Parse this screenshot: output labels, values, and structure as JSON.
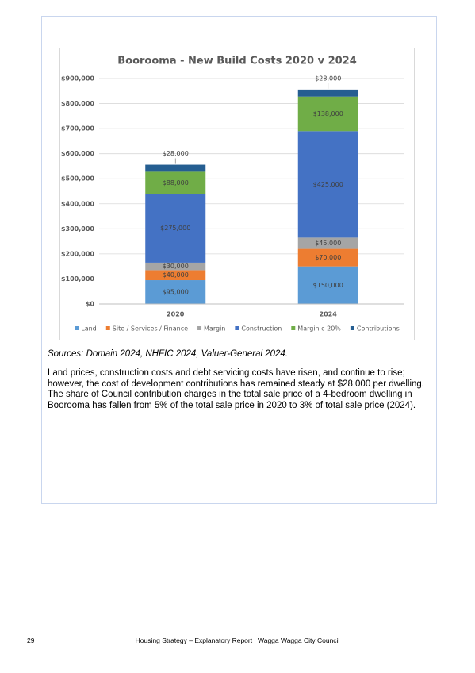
{
  "chart_data": {
    "type": "stacked-bar",
    "title": "Boorooma - New Build Costs 2020 v 2024",
    "categories": [
      "2020",
      "2024"
    ],
    "series": [
      {
        "name": "Land",
        "color": "#5b9bd5",
        "values": [
          95000,
          150000
        ],
        "value_labels": [
          "$95,000",
          "$150,000"
        ]
      },
      {
        "name": "Site / Services / Finance",
        "color": "#ed7d31",
        "values": [
          40000,
          70000
        ],
        "value_labels": [
          "$40,000",
          "$70,000"
        ]
      },
      {
        "name": "Margin",
        "color": "#a5a5a5",
        "values": [
          30000,
          45000
        ],
        "value_labels": [
          "$30,000",
          "$45,000"
        ]
      },
      {
        "name": "Construction",
        "color": "#4472c4",
        "values": [
          275000,
          425000
        ],
        "value_labels": [
          "$275,000",
          "$425,000"
        ]
      },
      {
        "name": "Margin c 20%",
        "color": "#70ad47",
        "values": [
          88000,
          138000
        ],
        "value_labels": [
          "$88,000",
          "$138,000"
        ]
      },
      {
        "name": "Contributions",
        "color": "#255e91",
        "values": [
          28000,
          28000
        ],
        "value_labels": [
          "$28,000",
          "$28,000"
        ]
      }
    ],
    "ylim": [
      0,
      900000
    ],
    "yticks": [
      {
        "value": 0,
        "label": "$0"
      },
      {
        "value": 100000,
        "label": "$100,000"
      },
      {
        "value": 200000,
        "label": "$200,000"
      },
      {
        "value": 300000,
        "label": "$300,000"
      },
      {
        "value": 400000,
        "label": "$400,000"
      },
      {
        "value": 500000,
        "label": "$500,000"
      },
      {
        "value": 600000,
        "label": "$600,000"
      },
      {
        "value": 700000,
        "label": "$700,000"
      },
      {
        "value": 800000,
        "label": "$800,000"
      },
      {
        "value": 900000,
        "label": "$900,000"
      }
    ],
    "grid": true,
    "legend": "bottom"
  },
  "sources": "Sources: Domain 2024, NHFIC 2024, Valuer-General 2024.",
  "paragraph": "Land prices, construction costs and debt servicing costs have risen, and continue to rise; however, the cost of development contributions has remained steady at $28,000 per dwelling. The share of Council contribution charges in the total sale price of a 4-bedroom dwelling in Boorooma has fallen from 5% of the total sale price in 2020 to 3% of total sale price (2024).",
  "footer": {
    "page_number": "29",
    "text": "Housing Strategy – Explanatory Report | Wagga Wagga City Council"
  }
}
